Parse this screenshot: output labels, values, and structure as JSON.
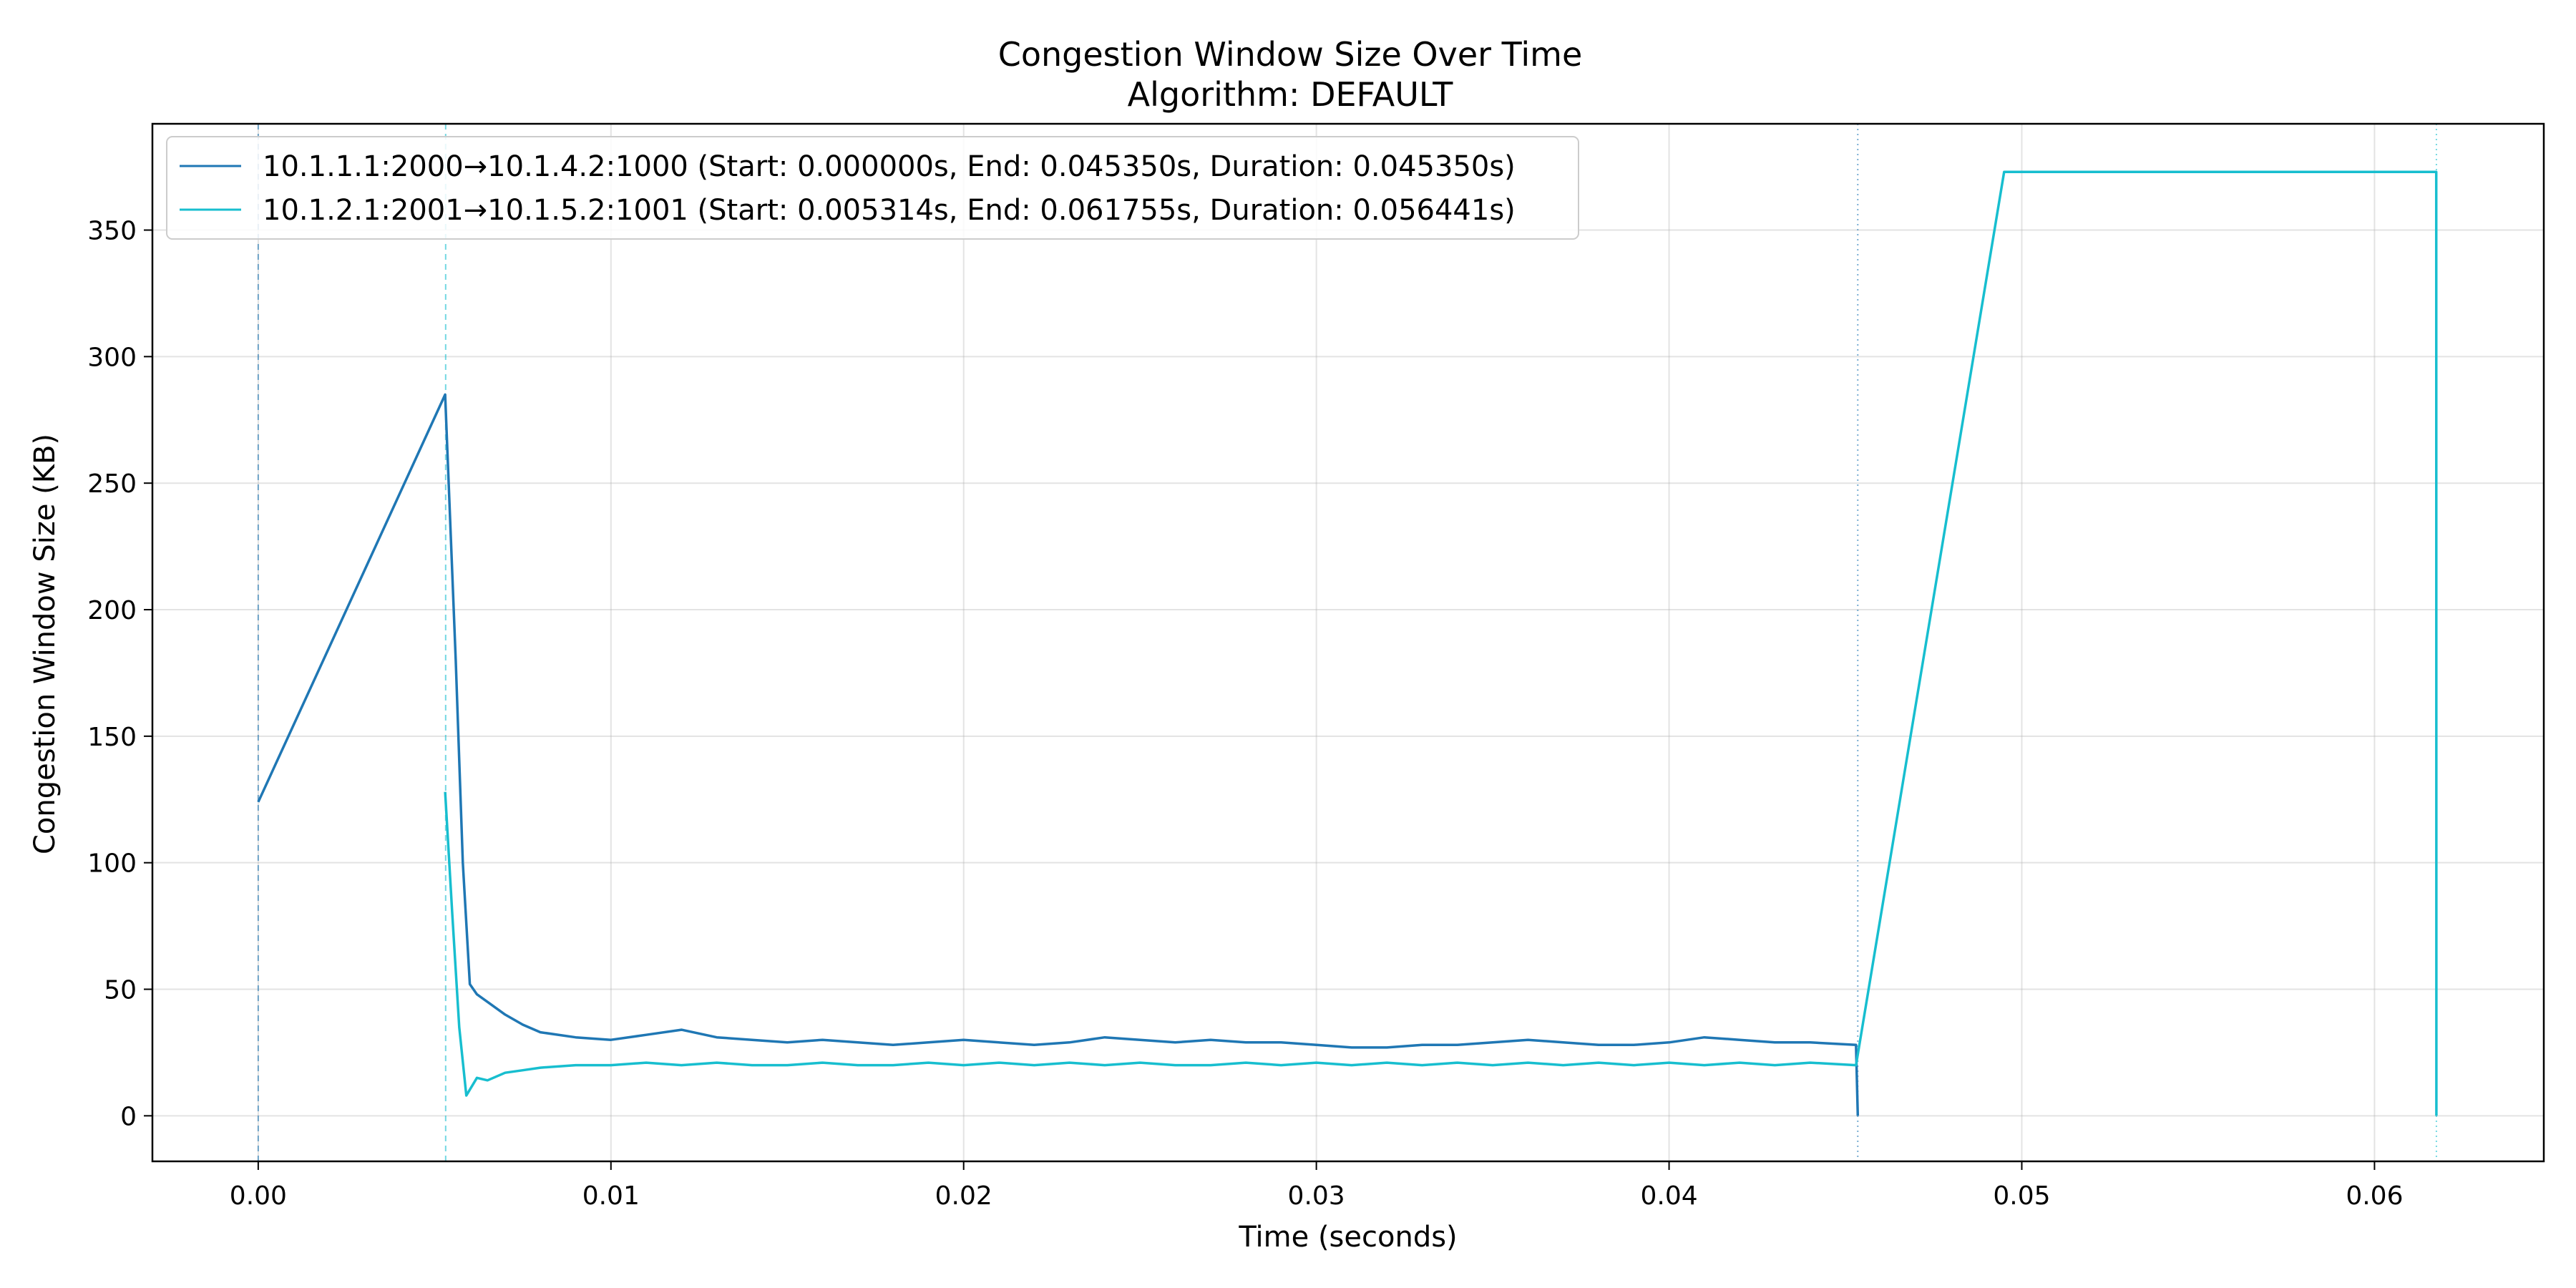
{
  "chart_data": {
    "type": "line",
    "title": "Congestion Window Size Over Time",
    "subtitle": "Algorithm: DEFAULT",
    "xlabel": "Time (seconds)",
    "ylabel": "Congestion Window Size (KB)",
    "xlim": [
      -0.003,
      0.0648
    ],
    "ylim": [
      -18,
      392
    ],
    "xticks": [
      0.0,
      0.01,
      0.02,
      0.03,
      0.04,
      0.05,
      0.06
    ],
    "xtick_labels": [
      "0.00",
      "0.01",
      "0.02",
      "0.03",
      "0.04",
      "0.05",
      "0.06"
    ],
    "yticks": [
      0,
      50,
      100,
      150,
      200,
      250,
      300,
      350
    ],
    "ytick_labels": [
      "0",
      "50",
      "100",
      "150",
      "200",
      "250",
      "300",
      "350"
    ],
    "grid": true,
    "legend_position": "top-left",
    "series": [
      {
        "name": "10.1.1.1:2000→10.1.4.2:1000 (Start: 0.000000s, End: 0.045350s, Duration: 0.045350s)",
        "color": "#1f77b4",
        "start": 0.0,
        "end": 0.04535,
        "points": [
          [
            0.0,
            124
          ],
          [
            0.0053,
            285
          ],
          [
            0.0056,
            180
          ],
          [
            0.0058,
            100
          ],
          [
            0.006,
            52
          ],
          [
            0.0062,
            48
          ],
          [
            0.0065,
            45
          ],
          [
            0.007,
            40
          ],
          [
            0.0075,
            36
          ],
          [
            0.008,
            33
          ],
          [
            0.009,
            31
          ],
          [
            0.01,
            30
          ],
          [
            0.011,
            32
          ],
          [
            0.012,
            34
          ],
          [
            0.013,
            31
          ],
          [
            0.014,
            30
          ],
          [
            0.015,
            29
          ],
          [
            0.016,
            30
          ],
          [
            0.017,
            29
          ],
          [
            0.018,
            28
          ],
          [
            0.019,
            29
          ],
          [
            0.02,
            30
          ],
          [
            0.021,
            29
          ],
          [
            0.022,
            28
          ],
          [
            0.023,
            29
          ],
          [
            0.024,
            31
          ],
          [
            0.025,
            30
          ],
          [
            0.026,
            29
          ],
          [
            0.027,
            30
          ],
          [
            0.028,
            29
          ],
          [
            0.029,
            29
          ],
          [
            0.03,
            28
          ],
          [
            0.031,
            27
          ],
          [
            0.032,
            27
          ],
          [
            0.033,
            28
          ],
          [
            0.034,
            28
          ],
          [
            0.035,
            29
          ],
          [
            0.036,
            30
          ],
          [
            0.037,
            29
          ],
          [
            0.038,
            28
          ],
          [
            0.039,
            28
          ],
          [
            0.04,
            29
          ],
          [
            0.041,
            31
          ],
          [
            0.042,
            30
          ],
          [
            0.043,
            29
          ],
          [
            0.044,
            29
          ],
          [
            0.0453,
            28
          ],
          [
            0.04535,
            0
          ]
        ]
      },
      {
        "name": "10.1.2.1:2001→10.1.5.2:1001 (Start: 0.005314s, End: 0.061755s, Duration: 0.056441s)",
        "color": "#17becf",
        "start": 0.005314,
        "end": 0.061755,
        "points": [
          [
            0.0053,
            128
          ],
          [
            0.0055,
            80
          ],
          [
            0.0057,
            35
          ],
          [
            0.0059,
            8
          ],
          [
            0.0062,
            15
          ],
          [
            0.0065,
            14
          ],
          [
            0.007,
            17
          ],
          [
            0.0075,
            18
          ],
          [
            0.008,
            19
          ],
          [
            0.009,
            20
          ],
          [
            0.01,
            20
          ],
          [
            0.011,
            21
          ],
          [
            0.012,
            20
          ],
          [
            0.013,
            21
          ],
          [
            0.014,
            20
          ],
          [
            0.015,
            20
          ],
          [
            0.016,
            21
          ],
          [
            0.017,
            20
          ],
          [
            0.018,
            20
          ],
          [
            0.019,
            21
          ],
          [
            0.02,
            20
          ],
          [
            0.021,
            21
          ],
          [
            0.022,
            20
          ],
          [
            0.023,
            21
          ],
          [
            0.024,
            20
          ],
          [
            0.025,
            21
          ],
          [
            0.026,
            20
          ],
          [
            0.027,
            20
          ],
          [
            0.028,
            21
          ],
          [
            0.029,
            20
          ],
          [
            0.03,
            21
          ],
          [
            0.031,
            20
          ],
          [
            0.032,
            21
          ],
          [
            0.033,
            20
          ],
          [
            0.034,
            21
          ],
          [
            0.035,
            20
          ],
          [
            0.036,
            21
          ],
          [
            0.037,
            20
          ],
          [
            0.038,
            21
          ],
          [
            0.039,
            20
          ],
          [
            0.04,
            21
          ],
          [
            0.041,
            20
          ],
          [
            0.042,
            21
          ],
          [
            0.043,
            20
          ],
          [
            0.044,
            21
          ],
          [
            0.0453,
            20
          ],
          [
            0.0495,
            373
          ],
          [
            0.06175,
            373
          ],
          [
            0.061755,
            0
          ]
        ]
      }
    ]
  }
}
